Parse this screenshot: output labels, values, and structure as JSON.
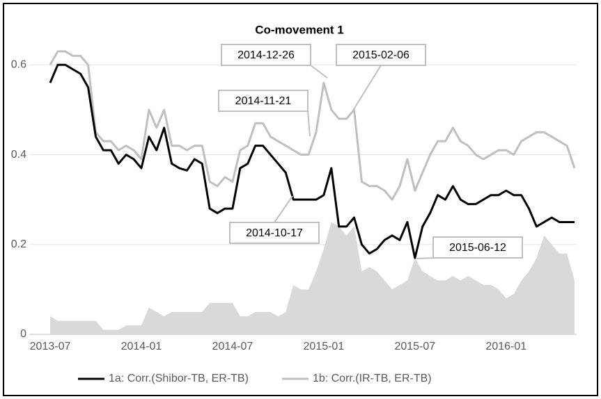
{
  "chart_data": {
    "type": "line",
    "title": "Co-movement 1",
    "categories": [
      "2013-07",
      null,
      null,
      null,
      null,
      null,
      null,
      null,
      null,
      null,
      null,
      null,
      "2014-01",
      null,
      null,
      null,
      null,
      null,
      null,
      null,
      null,
      null,
      null,
      null,
      "2014-07",
      null,
      null,
      null,
      null,
      null,
      null,
      null,
      null,
      null,
      null,
      null,
      "2015-01",
      null,
      null,
      null,
      null,
      null,
      null,
      null,
      null,
      null,
      null,
      null,
      "2015-07",
      null,
      null,
      null,
      null,
      null,
      null,
      null,
      null,
      null,
      null,
      null,
      "2016-01",
      null,
      null,
      null,
      null,
      null,
      null,
      null,
      null,
      null
    ],
    "series": [
      {
        "name": "1a: Corr.(Shibor-TB, ER-TB)",
        "color": "#000000",
        "values": [
          0.56,
          0.6,
          0.6,
          0.59,
          0.58,
          0.55,
          0.44,
          0.41,
          0.41,
          0.38,
          0.4,
          0.39,
          0.37,
          0.44,
          0.41,
          0.46,
          0.38,
          0.37,
          0.365,
          0.39,
          0.38,
          0.28,
          0.27,
          0.28,
          0.28,
          0.37,
          0.38,
          0.42,
          0.42,
          0.4,
          0.38,
          0.36,
          0.3,
          0.3,
          0.3,
          0.3,
          0.31,
          0.37,
          0.24,
          0.24,
          0.26,
          0.2,
          0.18,
          0.19,
          0.21,
          0.22,
          0.21,
          0.25,
          0.17,
          0.24,
          0.27,
          0.31,
          0.3,
          0.33,
          0.3,
          0.29,
          0.29,
          0.3,
          0.31,
          0.31,
          0.32,
          0.31,
          0.31,
          0.28,
          0.24,
          0.25,
          0.26,
          0.25,
          0.25,
          0.25
        ]
      },
      {
        "name": "1b: Corr.(IR-TB, ER-TB)",
        "color": "#bfbfbf",
        "values": [
          0.6,
          0.63,
          0.63,
          0.62,
          0.62,
          0.6,
          0.45,
          0.43,
          0.43,
          0.41,
          0.42,
          0.41,
          0.39,
          0.5,
          0.46,
          0.5,
          0.42,
          0.42,
          0.41,
          0.42,
          0.42,
          0.34,
          0.33,
          0.35,
          0.34,
          0.41,
          0.42,
          0.47,
          0.47,
          0.44,
          0.43,
          0.42,
          0.41,
          0.4,
          0.4,
          0.45,
          0.56,
          0.5,
          0.48,
          0.48,
          0.5,
          0.34,
          0.33,
          0.33,
          0.32,
          0.3,
          0.33,
          0.39,
          0.32,
          0.36,
          0.4,
          0.43,
          0.43,
          0.46,
          0.43,
          0.42,
          0.4,
          0.39,
          0.4,
          0.41,
          0.41,
          0.4,
          0.43,
          0.44,
          0.45,
          0.45,
          0.44,
          0.43,
          0.42,
          0.37
        ]
      },
      {
        "kind": "area",
        "color": "#d9d9d9",
        "values": [
          0.04,
          0.03,
          0.03,
          0.03,
          0.03,
          0.03,
          0.03,
          0.01,
          0.01,
          0.01,
          0.02,
          0.02,
          0.02,
          0.06,
          0.05,
          0.04,
          0.05,
          0.05,
          0.05,
          0.05,
          0.05,
          0.07,
          0.07,
          0.07,
          0.07,
          0.04,
          0.04,
          0.05,
          0.05,
          0.05,
          0.04,
          0.05,
          0.11,
          0.1,
          0.1,
          0.14,
          0.19,
          0.25,
          0.24,
          0.22,
          0.24,
          0.14,
          0.15,
          0.14,
          0.12,
          0.1,
          0.11,
          0.12,
          0.17,
          0.14,
          0.13,
          0.12,
          0.12,
          0.13,
          0.12,
          0.13,
          0.12,
          0.11,
          0.11,
          0.1,
          0.08,
          0.09,
          0.12,
          0.14,
          0.17,
          0.22,
          0.2,
          0.18,
          0.18,
          0.12
        ]
      }
    ],
    "ylim": [
      0,
      0.65
    ],
    "yticks": [
      0,
      0.2,
      0.4,
      0.6
    ],
    "grid": true,
    "legend": "bottom",
    "annotations": [
      "2014-12-26",
      "2015-02-06",
      "2014-11-21",
      "2014-10-17",
      "2015-06-12"
    ]
  }
}
